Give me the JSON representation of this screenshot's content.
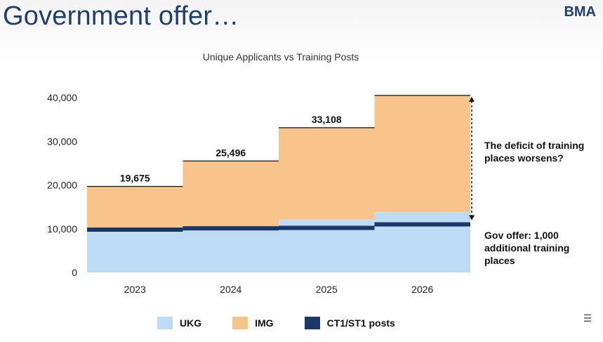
{
  "slide": {
    "title": "Government offer…",
    "brand": "BMA"
  },
  "chart_data": {
    "type": "area",
    "title": "Unique Applicants vs Training Posts",
    "categories": [
      "2023",
      "2024",
      "2025",
      "2026"
    ],
    "y_ticks": [
      "0",
      "10,000",
      "20,000",
      "30,000",
      "40,000"
    ],
    "ylim": [
      0,
      40000
    ],
    "totals": [
      19675,
      25496,
      33108,
      40500
    ],
    "total_labels": [
      "19,675",
      "25,496",
      "33,108",
      ""
    ],
    "series": [
      {
        "name": "UKG",
        "values": [
          9200,
          9700,
          12100,
          13800
        ]
      },
      {
        "name": "IMG",
        "values": [
          10475,
          15796,
          21008,
          26700
        ]
      },
      {
        "name": "CT1/ST1 posts",
        "values": [
          9800,
          10100,
          10200,
          11000
        ]
      }
    ],
    "annotations": [
      "The deficit of training places worsens?",
      "Gov offer: 1,000 additional training places"
    ],
    "grid": false,
    "legend_position": "bottom"
  },
  "legend": {
    "ukg": "UKG",
    "img": "IMG",
    "ct": "CT1/ST1 posts"
  },
  "annotations": {
    "deficit": "The deficit of training places worsens?",
    "gov": "Gov offer: 1,000 additional training places"
  },
  "colors": {
    "ukg": "#bcdcf3",
    "img": "#f9c48c",
    "ct": "#1b3668",
    "title": "#1f3f73"
  },
  "icons": {
    "corner": "caption-icon"
  }
}
